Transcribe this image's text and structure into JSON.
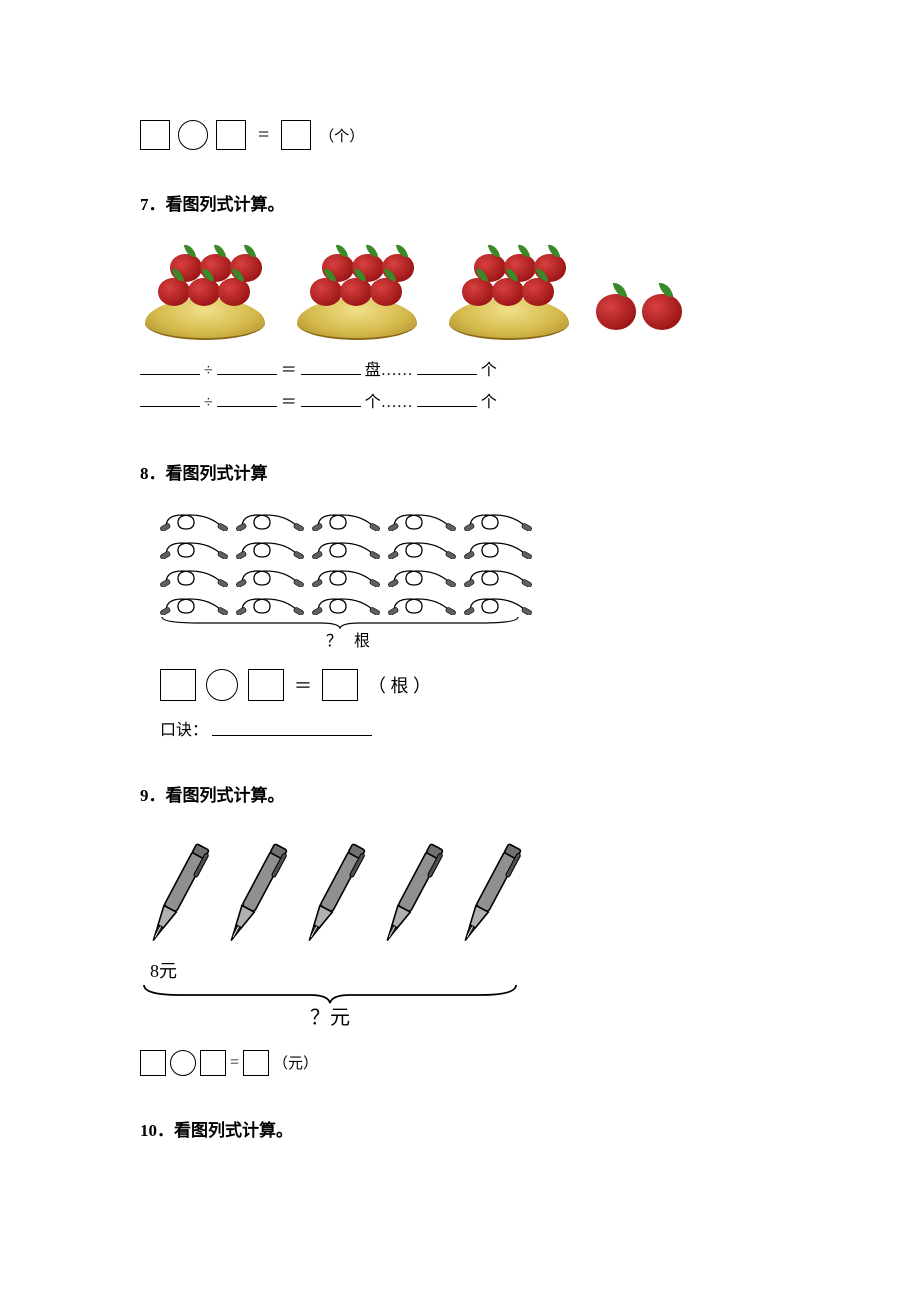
{
  "topEquation": {
    "equals": "=",
    "unit": "（个）"
  },
  "q7": {
    "title": "7．看图列式计算。",
    "plates": 3,
    "applesPerPlate": 6,
    "looseApples": 2,
    "line1": {
      "op": "÷",
      "eq": "＝",
      "mid": "盘……",
      "end": "个"
    },
    "line2": {
      "op": "÷",
      "eq": "＝",
      "mid": "个……",
      "end": "个"
    }
  },
  "q8": {
    "title": "8．看图列式计算",
    "rows": 4,
    "cols": 5,
    "braceLabel": "？ 根",
    "equals": "＝",
    "unit": "（ 根 ）",
    "koujueLabel": "口诀："
  },
  "q9": {
    "title": "9．看图列式计算。",
    "penCount": 5,
    "priceLabel": "8元",
    "questionLabel": "？元",
    "equals": "=",
    "unit": "（元）"
  },
  "q10": {
    "title": "10．看图列式计算。"
  },
  "colors": {
    "appleBody": "#a01818",
    "appleLeaf": "#3a8a2a",
    "plate": "#d4b84a",
    "penBody": "#808080",
    "penDark": "#404040",
    "ropeHandle": "#606060",
    "stroke": "#000000"
  }
}
